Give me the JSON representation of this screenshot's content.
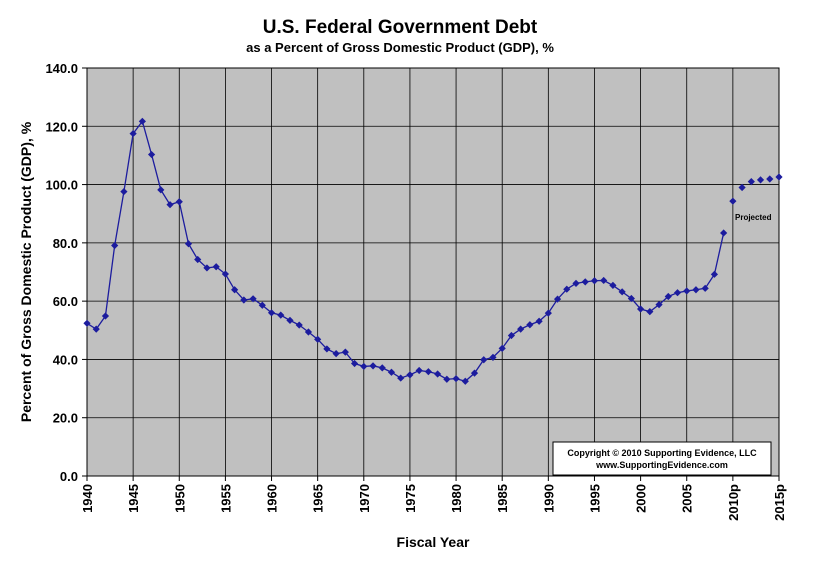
{
  "chart_data": {
    "type": "scatter",
    "title": "U.S. Federal Government Debt",
    "subtitle": "as a Percent of Gross Domestic Product (GDP), %",
    "xlabel": "Fiscal Year",
    "ylabel": "Percent of Gross Domestic Product (GDP), %",
    "xlim": [
      1940,
      2015
    ],
    "ylim": [
      0,
      140
    ],
    "y_ticks": [
      "0.0",
      "20.0",
      "40.0",
      "60.0",
      "80.0",
      "100.0",
      "120.0",
      "140.0"
    ],
    "x_ticks": [
      {
        "value": 1940,
        "label": "1940"
      },
      {
        "value": 1945,
        "label": "1945"
      },
      {
        "value": 1950,
        "label": "1950"
      },
      {
        "value": 1955,
        "label": "1955"
      },
      {
        "value": 1960,
        "label": "1960"
      },
      {
        "value": 1965,
        "label": "1965"
      },
      {
        "value": 1970,
        "label": "1970"
      },
      {
        "value": 1975,
        "label": "1975"
      },
      {
        "value": 1980,
        "label": "1980"
      },
      {
        "value": 1985,
        "label": "1985"
      },
      {
        "value": 1990,
        "label": "1990"
      },
      {
        "value": 1995,
        "label": "1995"
      },
      {
        "value": 2000,
        "label": "2000"
      },
      {
        "value": 2005,
        "label": "2005"
      },
      {
        "value": 2010,
        "label": "2010p"
      },
      {
        "value": 2015,
        "label": "2015p"
      }
    ],
    "grid": true,
    "series": [
      {
        "style": "line-markers",
        "x": [
          1940,
          1941,
          1942,
          1943,
          1944,
          1945,
          1946,
          1947,
          1948,
          1949,
          1950,
          1951,
          1952,
          1953,
          1954,
          1955,
          1956,
          1957,
          1958,
          1959,
          1960,
          1961,
          1962,
          1963,
          1964,
          1965,
          1966,
          1967,
          1968,
          1969,
          1970,
          1971,
          1972,
          1973,
          1974,
          1975,
          1976,
          1977,
          1978,
          1979,
          1980,
          1981,
          1982,
          1983,
          1984,
          1985,
          1986,
          1987,
          1988,
          1989,
          1990,
          1991,
          1992,
          1993,
          1994,
          1995,
          1996,
          1997,
          1998,
          1999,
          2000,
          2001,
          2002,
          2003,
          2004,
          2005,
          2006,
          2007,
          2008,
          2009
        ],
        "y": [
          52.4,
          50.4,
          54.9,
          79.1,
          97.6,
          117.5,
          121.7,
          110.3,
          98.2,
          93.1,
          94.1,
          79.7,
          74.3,
          71.4,
          71.8,
          69.3,
          63.9,
          60.4,
          60.8,
          58.6,
          56.0,
          55.2,
          53.4,
          51.8,
          49.4,
          46.9,
          43.6,
          42.0,
          42.5,
          38.6,
          37.6,
          37.8,
          37.1,
          35.6,
          33.6,
          34.7,
          36.2,
          35.8,
          35.0,
          33.2,
          33.4,
          32.5,
          35.3,
          39.9,
          40.7,
          43.8,
          48.2,
          50.4,
          51.9,
          53.1,
          55.9,
          60.7,
          64.1,
          66.1,
          66.6,
          67.0,
          67.1,
          65.4,
          63.2,
          60.9,
          57.3,
          56.4,
          58.8,
          61.6,
          62.9,
          63.5,
          63.9,
          64.4,
          69.2,
          83.4
        ]
      },
      {
        "style": "markers",
        "x": [
          2010,
          2011,
          2012,
          2013,
          2014,
          2015
        ],
        "y": [
          94.3,
          99.0,
          101.0,
          101.6,
          101.9,
          102.6
        ]
      }
    ],
    "annotations": [
      "Projected"
    ],
    "copyright_lines": [
      "Copyright © 2010 Supporting Evidence, LLC",
      "www.SupportingEvidence.com"
    ],
    "colors": {
      "plot_background": "#c0c0c0",
      "series": "#1c1c9e",
      "grid": "#000000"
    }
  }
}
